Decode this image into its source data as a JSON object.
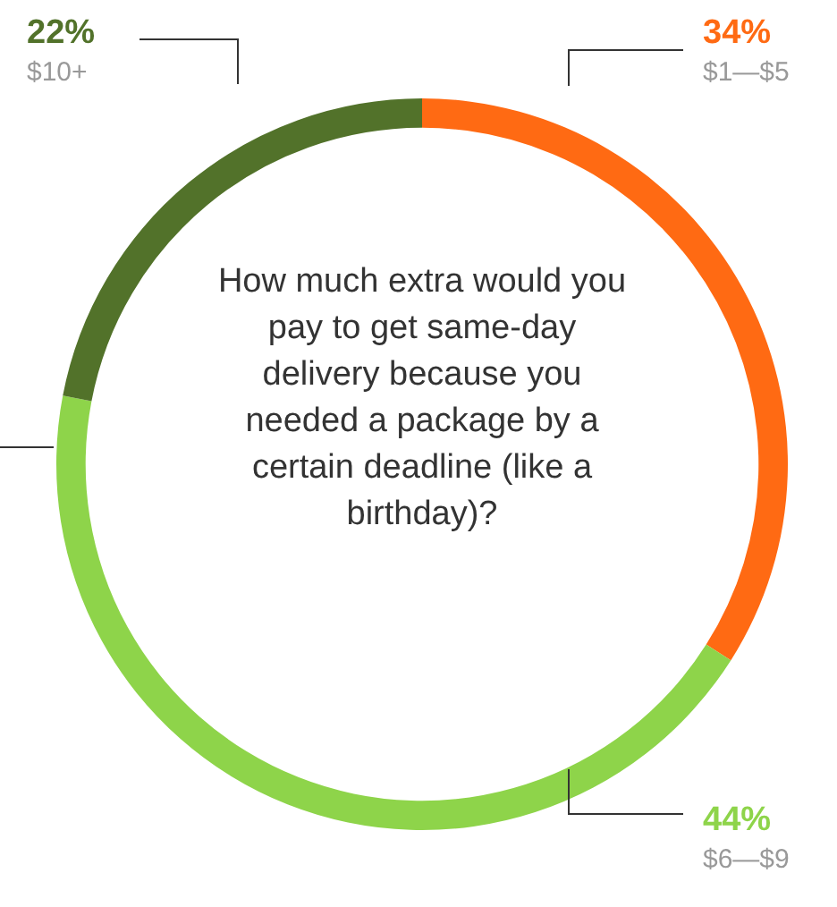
{
  "chart_data": {
    "type": "donut",
    "title": "How much extra would you pay to get same-day delivery because you needed a package by a certain deadline (like a birthday)?",
    "categories": [
      "$1—$5",
      "$6—$9",
      "$10+"
    ],
    "values": [
      34,
      44,
      22
    ],
    "value_labels": [
      "34%",
      "44%",
      "22%"
    ],
    "colors": [
      "#ff6a13",
      "#8ed44a",
      "#52722a"
    ],
    "legend": false
  }
}
